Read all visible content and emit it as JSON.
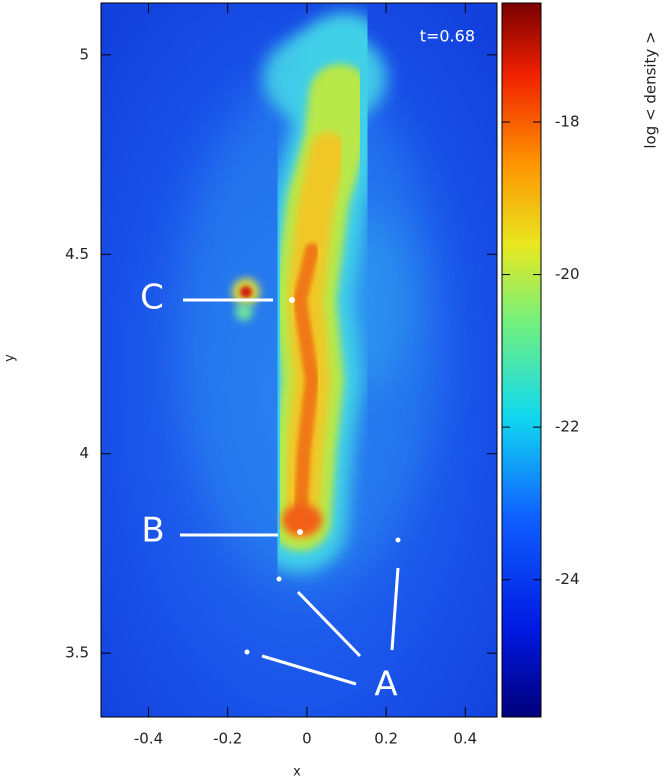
{
  "chart_data": {
    "type": "density-map",
    "xlabel": "x",
    "ylabel": "y",
    "colorbar_label": "log < density >",
    "annotation_time": "t=0.68",
    "annotations": [
      "A",
      "B",
      "C"
    ],
    "xlim": [
      -0.52,
      0.48
    ],
    "xticks": [
      -0.4,
      -0.2,
      0,
      0.2,
      0.4
    ],
    "ylim": [
      3.34,
      5.13
    ],
    "yticks": [
      3.5,
      4,
      4.5,
      5
    ],
    "clim": [
      -25.8,
      -16.44
    ],
    "cticks": [
      -24,
      -22,
      -20,
      -18
    ]
  }
}
